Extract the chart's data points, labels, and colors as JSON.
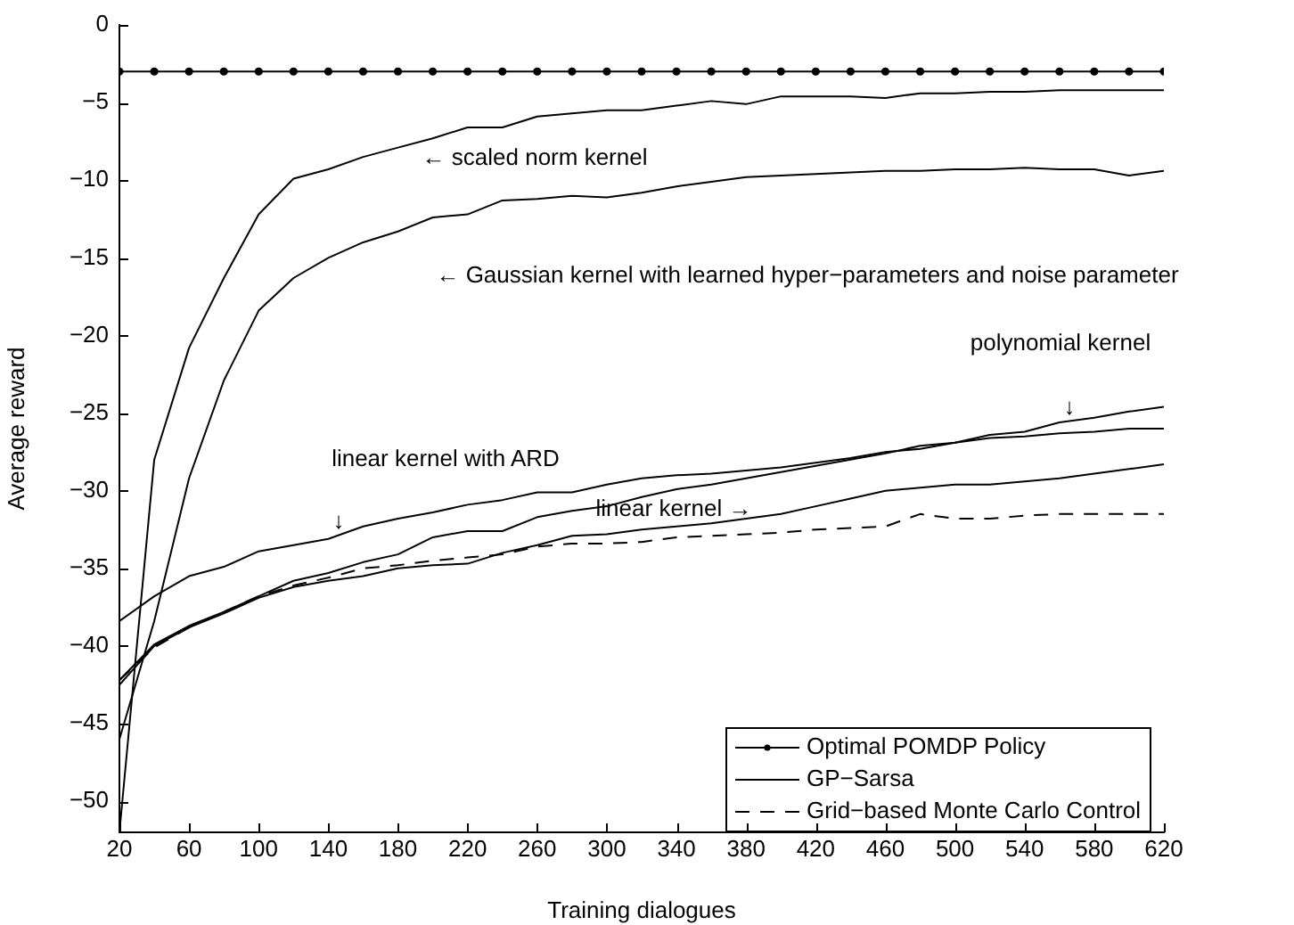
{
  "chart_data": {
    "type": "line",
    "xlabel": "Training dialogues",
    "ylabel": "Average reward",
    "x": [
      20,
      40,
      60,
      80,
      100,
      120,
      140,
      160,
      180,
      200,
      220,
      240,
      260,
      280,
      300,
      320,
      340,
      360,
      380,
      400,
      420,
      440,
      460,
      480,
      500,
      520,
      540,
      560,
      580,
      600,
      620
    ],
    "xlim": [
      20,
      620
    ],
    "xticks": [
      20,
      60,
      100,
      140,
      180,
      220,
      260,
      300,
      340,
      380,
      420,
      460,
      500,
      540,
      580,
      620
    ],
    "ylim": [
      -52,
      0
    ],
    "yticks": [
      0,
      -5,
      -10,
      -15,
      -20,
      -25,
      -30,
      -35,
      -40,
      -45,
      -50
    ],
    "grid": false,
    "legend": "bottom right",
    "line_style": "solid",
    "marker": "none",
    "series": [
      {
        "name": "Optimal POMDP Policy",
        "color": "#000000",
        "marker": "circle",
        "values": [
          -3,
          -3,
          -3,
          -3,
          -3,
          -3,
          -3,
          -3,
          -3,
          -3,
          -3,
          -3,
          -3,
          -3,
          -3,
          -3,
          -3,
          -3,
          -3,
          -3,
          -3,
          -3,
          -3,
          -3,
          -3,
          -3,
          -3,
          -3,
          -3,
          -3,
          -3
        ]
      },
      {
        "name": "GP−Sarsa",
        "color": "#000000",
        "values": [
          -52,
          -28,
          -20.8,
          -16.3,
          -12.2,
          -9.9,
          -9.3,
          -8.5,
          -7.9,
          -7.3,
          -6.6,
          -6.6,
          -5.9,
          -5.7,
          -5.5,
          -5.5,
          -5.2,
          -4.9,
          -5.1,
          -4.6,
          -4.6,
          -4.6,
          -4.7,
          -4.4,
          -4.4,
          -4.3,
          -4.3,
          -4.2,
          -4.2,
          -4.2,
          -4.2
        ]
      },
      {
        "color": "#000000",
        "values": [
          -46,
          -38.4,
          -29.2,
          -22.9,
          -18.4,
          -16.3,
          -15,
          -14,
          -13.3,
          -12.4,
          -12.2,
          -11.3,
          -11.2,
          -11,
          -11.1,
          -10.8,
          -10.4,
          -10.1,
          -9.8,
          -9.7,
          -9.6,
          -9.5,
          -9.4,
          -9.4,
          -9.3,
          -9.3,
          -9.2,
          -9.3,
          -9.3,
          -9.7,
          -9.4
        ]
      },
      {
        "color": "#000000",
        "values": [
          -42.2,
          -39.9,
          -38.7,
          -37.8,
          -36.8,
          -35.8,
          -35.3,
          -34.6,
          -34.1,
          -33,
          -32.6,
          -32.6,
          -31.7,
          -31.3,
          -31,
          -30.4,
          -29.9,
          -29.6,
          -29.2,
          -28.8,
          -28.4,
          -28,
          -27.6,
          -27.1,
          -26.9,
          -26.4,
          -26.2,
          -25.6,
          -25.3,
          -24.9,
          -24.6
        ]
      },
      {
        "color": "#000000",
        "values": [
          -38.4,
          -36.8,
          -35.5,
          -34.9,
          -33.9,
          -33.5,
          -33.1,
          -32.3,
          -31.8,
          -31.4,
          -30.9,
          -30.6,
          -30.1,
          -30.1,
          -29.6,
          -29.2,
          -29,
          -28.9,
          -28.7,
          -28.5,
          -28.2,
          -27.9,
          -27.5,
          -27.3,
          -26.9,
          -26.6,
          -26.5,
          -26.3,
          -26.2,
          -26,
          -26
        ]
      },
      {
        "color": "#000000",
        "values": [
          -42.5,
          -40,
          -38.8,
          -37.9,
          -36.9,
          -36.2,
          -35.8,
          -35.5,
          -35,
          -34.8,
          -34.7,
          -34,
          -33.5,
          -32.9,
          -32.8,
          -32.5,
          -32.3,
          -32.1,
          -31.8,
          -31.5,
          -31,
          -30.5,
          -30,
          -29.8,
          -29.6,
          -29.6,
          -29.4,
          -29.2,
          -28.9,
          -28.6,
          -28.3
        ]
      },
      {
        "name": "Grid−based Monte Carlo Control",
        "color": "#000000",
        "line_style": "dashed",
        "values": [
          -42.2,
          -40.1,
          -38.8,
          -37.8,
          -36.8,
          -36.1,
          -35.6,
          -35,
          -34.8,
          -34.5,
          -34.3,
          -34.1,
          -33.6,
          -33.4,
          -33.4,
          -33.3,
          -33,
          -32.9,
          -32.8,
          -32.7,
          -32.5,
          -32.4,
          -32.3,
          -31.5,
          -31.8,
          -31.8,
          -31.6,
          -31.5,
          -31.5,
          -31.5,
          -31.5
        ]
      }
    ],
    "annotations": [
      "← scaled norm kernel",
      "← Gaussian kernel with learned hyper−parameters and noise parameter",
      "polynomial kernel",
      "↓",
      "linear kernel with ARD",
      "↓",
      "linear kernel →"
    ]
  }
}
